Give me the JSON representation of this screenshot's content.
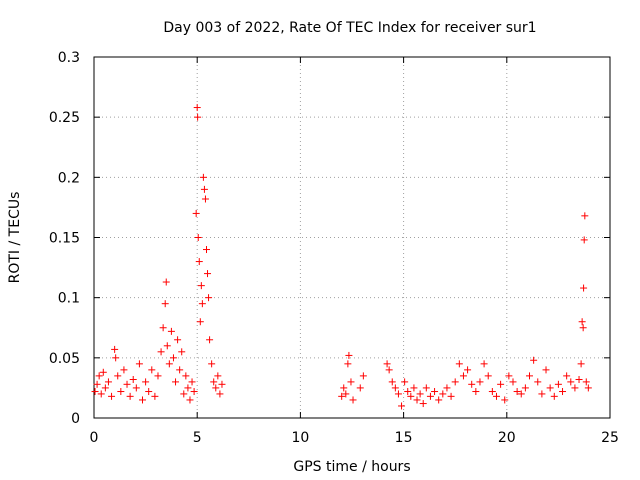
{
  "chart_data": {
    "type": "scatter",
    "title": "Day 003 of 2022, Rate Of TEC Index for receiver sur1",
    "xlabel": "GPS time / hours",
    "ylabel": "ROTI / TECUs",
    "xlim": [
      0,
      25
    ],
    "ylim": [
      0,
      0.3
    ],
    "x_ticks": [
      "0",
      "5",
      "10",
      "15",
      "20",
      "25"
    ],
    "y_ticks": [
      "0",
      "0.05",
      "0.1",
      "0.15",
      "0.2",
      "0.25",
      "0.3"
    ],
    "grid": true,
    "marker": "+",
    "marker_color": "#ff0000",
    "series": [
      {
        "points": [
          [
            0.05,
            0.022
          ],
          [
            0.15,
            0.028
          ],
          [
            0.25,
            0.035
          ],
          [
            0.35,
            0.02
          ],
          [
            0.45,
            0.038
          ],
          [
            0.55,
            0.025
          ],
          [
            0.7,
            0.03
          ],
          [
            0.85,
            0.018
          ],
          [
            1.0,
            0.057
          ],
          [
            1.05,
            0.05
          ],
          [
            1.15,
            0.035
          ],
          [
            1.3,
            0.022
          ],
          [
            1.45,
            0.04
          ],
          [
            1.6,
            0.028
          ],
          [
            1.75,
            0.018
          ],
          [
            1.9,
            0.032
          ],
          [
            2.05,
            0.025
          ],
          [
            2.2,
            0.045
          ],
          [
            2.35,
            0.015
          ],
          [
            2.5,
            0.03
          ],
          [
            2.65,
            0.022
          ],
          [
            2.8,
            0.04
          ],
          [
            2.95,
            0.018
          ],
          [
            3.1,
            0.035
          ],
          [
            3.25,
            0.055
          ],
          [
            3.35,
            0.075
          ],
          [
            3.45,
            0.095
          ],
          [
            3.5,
            0.113
          ],
          [
            3.55,
            0.06
          ],
          [
            3.65,
            0.045
          ],
          [
            3.75,
            0.072
          ],
          [
            3.85,
            0.05
          ],
          [
            3.95,
            0.03
          ],
          [
            4.05,
            0.065
          ],
          [
            4.15,
            0.04
          ],
          [
            4.25,
            0.055
          ],
          [
            4.35,
            0.02
          ],
          [
            4.45,
            0.035
          ],
          [
            4.55,
            0.025
          ],
          [
            4.65,
            0.015
          ],
          [
            4.75,
            0.03
          ],
          [
            4.85,
            0.022
          ],
          [
            4.95,
            0.17
          ],
          [
            5.0,
            0.258
          ],
          [
            5.02,
            0.25
          ],
          [
            5.05,
            0.15
          ],
          [
            5.1,
            0.13
          ],
          [
            5.15,
            0.08
          ],
          [
            5.2,
            0.11
          ],
          [
            5.25,
            0.095
          ],
          [
            5.3,
            0.2
          ],
          [
            5.35,
            0.19
          ],
          [
            5.4,
            0.182
          ],
          [
            5.45,
            0.14
          ],
          [
            5.5,
            0.12
          ],
          [
            5.55,
            0.1
          ],
          [
            5.6,
            0.065
          ],
          [
            5.7,
            0.045
          ],
          [
            5.8,
            0.03
          ],
          [
            5.9,
            0.025
          ],
          [
            6.0,
            0.035
          ],
          [
            6.1,
            0.02
          ],
          [
            6.2,
            0.028
          ],
          [
            12.0,
            0.018
          ],
          [
            12.1,
            0.025
          ],
          [
            12.2,
            0.02
          ],
          [
            12.3,
            0.045
          ],
          [
            12.35,
            0.052
          ],
          [
            12.45,
            0.03
          ],
          [
            12.55,
            0.015
          ],
          [
            12.9,
            0.025
          ],
          [
            13.05,
            0.035
          ],
          [
            14.2,
            0.045
          ],
          [
            14.3,
            0.04
          ],
          [
            14.45,
            0.03
          ],
          [
            14.6,
            0.025
          ],
          [
            14.75,
            0.02
          ],
          [
            14.9,
            0.01
          ],
          [
            15.05,
            0.03
          ],
          [
            15.2,
            0.022
          ],
          [
            15.35,
            0.018
          ],
          [
            15.5,
            0.025
          ],
          [
            15.65,
            0.015
          ],
          [
            15.8,
            0.02
          ],
          [
            15.95,
            0.012
          ],
          [
            16.1,
            0.025
          ],
          [
            16.3,
            0.018
          ],
          [
            16.5,
            0.022
          ],
          [
            16.7,
            0.015
          ],
          [
            16.9,
            0.02
          ],
          [
            17.1,
            0.025
          ],
          [
            17.3,
            0.018
          ],
          [
            17.5,
            0.03
          ],
          [
            17.7,
            0.045
          ],
          [
            17.9,
            0.035
          ],
          [
            18.1,
            0.04
          ],
          [
            18.3,
            0.028
          ],
          [
            18.5,
            0.022
          ],
          [
            18.7,
            0.03
          ],
          [
            18.9,
            0.045
          ],
          [
            19.1,
            0.035
          ],
          [
            19.3,
            0.022
          ],
          [
            19.5,
            0.018
          ],
          [
            19.7,
            0.028
          ],
          [
            19.9,
            0.015
          ],
          [
            20.1,
            0.035
          ],
          [
            20.3,
            0.03
          ],
          [
            20.5,
            0.022
          ],
          [
            20.7,
            0.02
          ],
          [
            20.9,
            0.025
          ],
          [
            21.1,
            0.035
          ],
          [
            21.3,
            0.048
          ],
          [
            21.5,
            0.03
          ],
          [
            21.7,
            0.02
          ],
          [
            21.9,
            0.04
          ],
          [
            22.1,
            0.025
          ],
          [
            22.3,
            0.018
          ],
          [
            22.5,
            0.028
          ],
          [
            22.7,
            0.022
          ],
          [
            22.9,
            0.035
          ],
          [
            23.1,
            0.03
          ],
          [
            23.3,
            0.025
          ],
          [
            23.5,
            0.032
          ],
          [
            23.6,
            0.045
          ],
          [
            23.65,
            0.08
          ],
          [
            23.7,
            0.075
          ],
          [
            23.72,
            0.108
          ],
          [
            23.75,
            0.148
          ],
          [
            23.78,
            0.168
          ],
          [
            23.85,
            0.03
          ],
          [
            23.95,
            0.025
          ]
        ]
      }
    ]
  }
}
